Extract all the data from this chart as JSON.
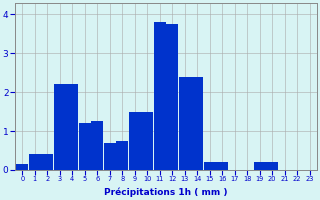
{
  "categories": [
    0,
    1,
    2,
    3,
    4,
    5,
    6,
    7,
    8,
    9,
    10,
    11,
    12,
    13,
    14,
    15,
    16,
    17,
    18,
    19,
    20,
    21,
    22,
    23
  ],
  "values": [
    0.15,
    0.4,
    0.4,
    2.2,
    2.2,
    1.2,
    1.25,
    0.7,
    0.75,
    1.5,
    1.5,
    3.8,
    3.75,
    2.4,
    2.4,
    0.2,
    0.2,
    0.0,
    0.0,
    0.2,
    0.2,
    0.0,
    0.0,
    0.0
  ],
  "bar_color": "#0033cc",
  "background_color": "#d8f4f4",
  "grid_color": "#aaaaaa",
  "xlabel": "Précipitations 1h ( mm )",
  "xlabel_color": "#0000cc",
  "ylabel_color": "#0000cc",
  "tick_color": "#0000cc",
  "ylim": [
    0,
    4.3
  ],
  "yticks": [
    0,
    1,
    2,
    3,
    4
  ],
  "figsize": [
    3.2,
    2.0
  ],
  "dpi": 100
}
